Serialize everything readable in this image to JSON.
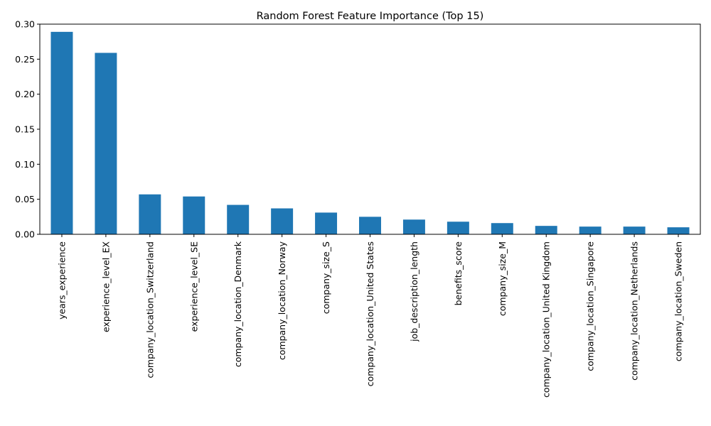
{
  "chart_data": {
    "type": "bar",
    "title": "Random Forest Feature Importance (Top 15)",
    "xlabel": "",
    "ylabel": "",
    "ylim": [
      0,
      0.3
    ],
    "yticks": [
      0.0,
      0.05,
      0.1,
      0.15,
      0.2,
      0.25,
      0.3
    ],
    "ytick_labels": [
      "0.00",
      "0.05",
      "0.10",
      "0.15",
      "0.20",
      "0.25",
      "0.30"
    ],
    "grid": false,
    "legend": "none",
    "bar_color": "#1f77b4",
    "categories": [
      "years_experience",
      "experience_level_EX",
      "company_location_Switzerland",
      "experience_level_SE",
      "company_location_Denmark",
      "company_location_Norway",
      "company_size_S",
      "company_location_United States",
      "job_description_length",
      "benefits_score",
      "company_size_M",
      "company_location_United Kingdom",
      "company_location_Singapore",
      "company_location_Netherlands",
      "company_location_Sweden"
    ],
    "values": [
      0.289,
      0.259,
      0.057,
      0.054,
      0.042,
      0.037,
      0.031,
      0.025,
      0.021,
      0.018,
      0.016,
      0.012,
      0.011,
      0.011,
      0.01
    ]
  }
}
